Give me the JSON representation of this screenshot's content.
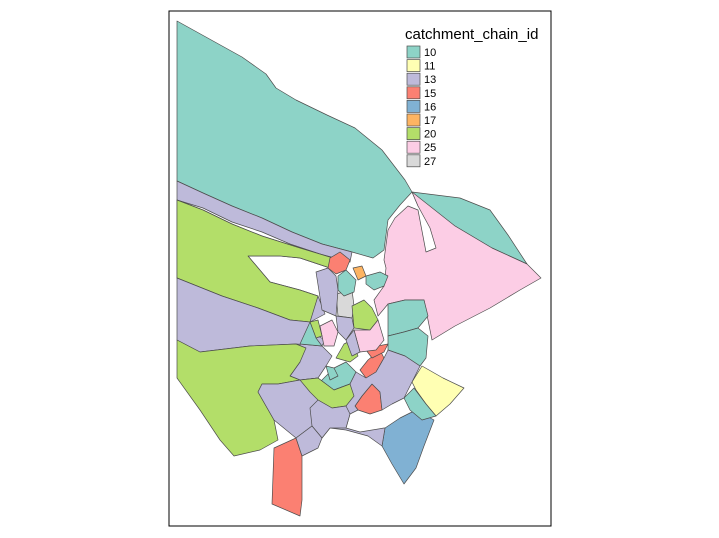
{
  "legend": {
    "title": "catchment_chain_id",
    "entries": [
      {
        "label": "10",
        "color": "#8DD3C7"
      },
      {
        "label": "11",
        "color": "#FFFFB3"
      },
      {
        "label": "13",
        "color": "#BEBADA"
      },
      {
        "label": "15",
        "color": "#FB8072"
      },
      {
        "label": "16",
        "color": "#80B1D3"
      },
      {
        "label": "17",
        "color": "#FDB462"
      },
      {
        "label": "20",
        "color": "#B3DE69"
      },
      {
        "label": "25",
        "color": "#FCCDE5"
      },
      {
        "label": "27",
        "color": "#D9D9D9"
      }
    ]
  },
  "catchments": [
    {
      "chain_id": "10"
    },
    {
      "chain_id": "10"
    },
    {
      "chain_id": "13"
    },
    {
      "chain_id": "13"
    },
    {
      "chain_id": "20"
    },
    {
      "chain_id": "13"
    },
    {
      "chain_id": "13"
    },
    {
      "chain_id": "20"
    },
    {
      "chain_id": "25"
    },
    {
      "chain_id": "10"
    },
    {
      "chain_id": "10"
    },
    {
      "chain_id": "11"
    },
    {
      "chain_id": "16"
    },
    {
      "chain_id": "15"
    },
    {
      "chain_id": "15"
    },
    {
      "chain_id": "15"
    },
    {
      "chain_id": "15"
    },
    {
      "chain_id": "15"
    },
    {
      "chain_id": "15"
    },
    {
      "chain_id": "17"
    },
    {
      "chain_id": "27"
    },
    {
      "chain_id": "20"
    },
    {
      "chain_id": "20"
    },
    {
      "chain_id": "10"
    },
    {
      "chain_id": "10"
    },
    {
      "chain_id": "10"
    },
    {
      "chain_id": "10"
    },
    {
      "chain_id": "25"
    },
    {
      "chain_id": "25"
    },
    {
      "chain_id": "13"
    },
    {
      "chain_id": "13"
    },
    {
      "chain_id": "13"
    },
    {
      "chain_id": "20"
    },
    {
      "chain_id": "10"
    },
    {
      "chain_id": "13"
    },
    {
      "chain_id": "20"
    },
    {
      "chain_id": "10"
    },
    {
      "chain_id": "13"
    },
    {
      "chain_id": "13"
    }
  ]
}
